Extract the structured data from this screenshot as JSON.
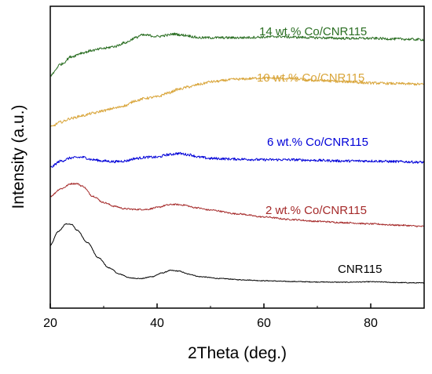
{
  "chart_data": {
    "type": "line",
    "xlabel": "2Theta (deg.)",
    "ylabel": "Intensity (a.u.)",
    "xlim": [
      20,
      90
    ],
    "xticks": [
      20,
      40,
      60,
      80
    ],
    "yticks_shown": false,
    "grid": false,
    "legend": "inline-labels",
    "series": [
      {
        "name": "CNR115",
        "color": "#000000",
        "noise": 0.3,
        "points": [
          [
            20,
            30
          ],
          [
            21.5,
            41
          ],
          [
            23,
            47
          ],
          [
            24,
            46.5
          ],
          [
            25,
            42
          ],
          [
            27,
            32
          ],
          [
            29,
            20
          ],
          [
            31,
            12
          ],
          [
            33,
            7
          ],
          [
            35,
            4
          ],
          [
            37,
            3.5
          ],
          [
            39,
            5
          ],
          [
            41,
            8
          ],
          [
            42.5,
            10
          ],
          [
            44,
            9.5
          ],
          [
            46,
            7
          ],
          [
            48,
            5
          ],
          [
            52,
            3.5
          ],
          [
            56,
            2.5
          ],
          [
            60,
            1.8
          ],
          [
            65,
            1.2
          ],
          [
            70,
            0.8
          ],
          [
            75,
            0.6
          ],
          [
            78,
            0.8
          ],
          [
            80,
            1
          ],
          [
            82,
            0.8
          ],
          [
            85,
            0.3
          ],
          [
            90,
            0
          ]
        ]
      },
      {
        "name": "2 wt.% Co/CNR115",
        "color": "#a52a2a",
        "noise": 0.6,
        "points": [
          [
            20,
            69
          ],
          [
            22,
            75
          ],
          [
            24,
            79
          ],
          [
            25,
            79
          ],
          [
            26,
            77
          ],
          [
            28,
            69
          ],
          [
            30,
            64
          ],
          [
            32,
            61
          ],
          [
            34,
            59
          ],
          [
            36,
            58.5
          ],
          [
            38,
            58.5
          ],
          [
            40,
            60
          ],
          [
            42,
            62
          ],
          [
            43,
            62.5
          ],
          [
            45,
            62
          ],
          [
            47,
            60
          ],
          [
            50,
            58
          ],
          [
            55,
            55
          ],
          [
            60,
            52.5
          ],
          [
            65,
            50.5
          ],
          [
            70,
            49
          ],
          [
            75,
            48
          ],
          [
            80,
            47
          ],
          [
            85,
            46
          ],
          [
            90,
            45
          ]
        ]
      },
      {
        "name": "6 wt.% Co/CNR115",
        "color": "#0000d8",
        "noise": 1.0,
        "points": [
          [
            20,
            92
          ],
          [
            22,
            97
          ],
          [
            24,
            99.5
          ],
          [
            26,
            100
          ],
          [
            28,
            98
          ],
          [
            30,
            97
          ],
          [
            32,
            96.5
          ],
          [
            34,
            97
          ],
          [
            36,
            99
          ],
          [
            38,
            100
          ],
          [
            40,
            100
          ],
          [
            42,
            102
          ],
          [
            44,
            103
          ],
          [
            46,
            102
          ],
          [
            48,
            100
          ],
          [
            50,
            99
          ],
          [
            55,
            98.5
          ],
          [
            60,
            98
          ],
          [
            65,
            98
          ],
          [
            70,
            97.5
          ],
          [
            75,
            97
          ],
          [
            80,
            97
          ],
          [
            85,
            96.5
          ],
          [
            90,
            96
          ]
        ]
      },
      {
        "name": "10 wt.% Co/CNR115",
        "color": "#d9a53a",
        "noise": 1.0,
        "points": [
          [
            20,
            124
          ],
          [
            22,
            128
          ],
          [
            24,
            131
          ],
          [
            26,
            133
          ],
          [
            28,
            135
          ],
          [
            30,
            137
          ],
          [
            32,
            139
          ],
          [
            34,
            141
          ],
          [
            36,
            145
          ],
          [
            38,
            147
          ],
          [
            40,
            148
          ],
          [
            42,
            151
          ],
          [
            44,
            154
          ],
          [
            46,
            156
          ],
          [
            48,
            158
          ],
          [
            50,
            160
          ],
          [
            55,
            162
          ],
          [
            60,
            163
          ],
          [
            65,
            162.5
          ],
          [
            70,
            161
          ],
          [
            75,
            160
          ],
          [
            80,
            159
          ],
          [
            85,
            158.5
          ],
          [
            90,
            158
          ]
        ]
      },
      {
        "name": "14 wt.% Co/CNR115",
        "color": "#2a6e22",
        "noise": 1.0,
        "points": [
          [
            20,
            165
          ],
          [
            22,
            174
          ],
          [
            24,
            180
          ],
          [
            26,
            183
          ],
          [
            28,
            185
          ],
          [
            30,
            186.5
          ],
          [
            32,
            188
          ],
          [
            34,
            191
          ],
          [
            36,
            195
          ],
          [
            37,
            197
          ],
          [
            38,
            197
          ],
          [
            40,
            196
          ],
          [
            42,
            197
          ],
          [
            43,
            198
          ],
          [
            45,
            197
          ],
          [
            48,
            195
          ],
          [
            50,
            195
          ],
          [
            55,
            195
          ],
          [
            60,
            195.5
          ],
          [
            63,
            196
          ],
          [
            65,
            195.5
          ],
          [
            70,
            195
          ],
          [
            75,
            194.5
          ],
          [
            80,
            194.5
          ],
          [
            85,
            194
          ],
          [
            90,
            193.5
          ]
        ]
      }
    ],
    "labels": [
      {
        "text": "14 wt.% Co/CNR115",
        "color": "#2a6e22"
      },
      {
        "text": "10 wt.% Co/CNR115",
        "color": "#d9a53a"
      },
      {
        "text": "6 wt.% Co/CNR115",
        "color": "#0000d8"
      },
      {
        "text": "2 wt.% Co/CNR115",
        "color": "#a52a2a"
      },
      {
        "text": "CNR115",
        "color": "#000000"
      }
    ]
  }
}
